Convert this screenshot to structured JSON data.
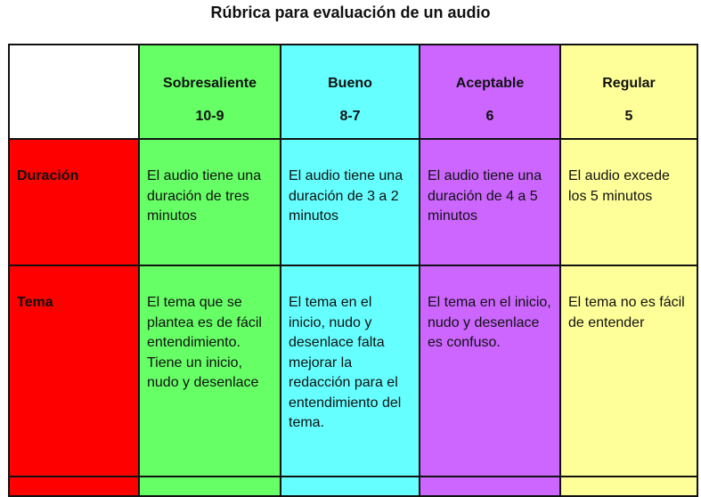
{
  "title": "Rúbrica para evaluación de un audio",
  "colors": {
    "criteria": "#ff0000",
    "sobresaliente": "#66ff66",
    "bueno": "#66ffff",
    "aceptable": "#cc66ff",
    "regular": "#ffff99"
  },
  "levels": [
    {
      "label": "Sobresaliente",
      "score": "10-9"
    },
    {
      "label": "Bueno",
      "score": "8-7"
    },
    {
      "label": "Aceptable",
      "score": "6"
    },
    {
      "label": "Regular",
      "score": "5"
    }
  ],
  "rows": [
    {
      "criterion": "Duración",
      "cells": [
        "El audio tiene una duración de tres minutos",
        "El audio tiene una duración de 3 a 2 minutos",
        "El audio tiene una duración de 4 a 5 minutos",
        "El audio excede los 5 minutos"
      ]
    },
    {
      "criterion": "Tema",
      "cells": [
        "El tema que se plantea es de fácil entendimiento. Tiene un inicio, nudo y desenlace",
        "El tema en el inicio, nudo y desenlace falta mejorar la redacción para el entendimiento del tema.",
        "El tema en el inicio, nudo y desenlace es confuso.",
        "El tema no es fácil de entender"
      ]
    }
  ]
}
